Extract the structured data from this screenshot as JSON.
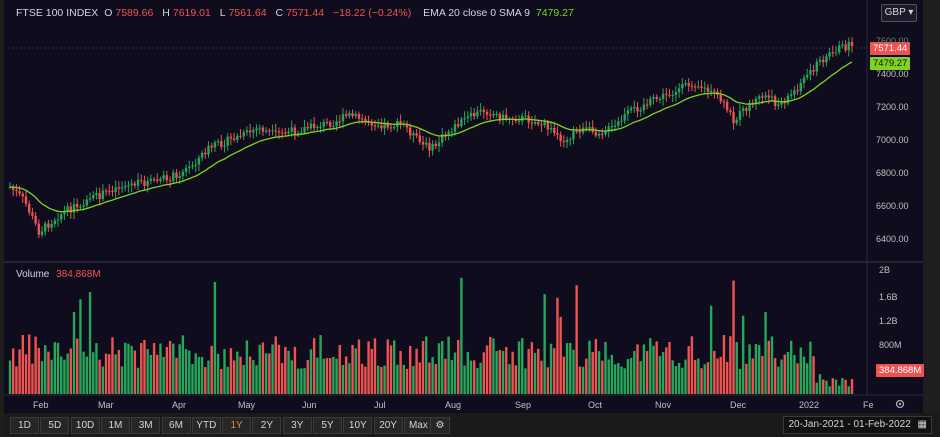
{
  "header": {
    "symbol": "FTSE 100 INDEX",
    "open_label": "O",
    "open": "7589.66",
    "high_label": "H",
    "high": "7619.01",
    "low_label": "L",
    "low": "7561.64",
    "close_label": "C",
    "close": "7571.44",
    "change": "−18.22 (−0.24%)",
    "ema_label": "EMA 20 close 0 SMA 9",
    "ema_value": "7479.27"
  },
  "currency": "GBP",
  "price_tag": "7571.44",
  "ema_tag": "7479.27",
  "price_axis": [
    "7600.00",
    "7400.00",
    "7200.00",
    "7000.00",
    "6800.00",
    "6600.00",
    "6400.00"
  ],
  "volume": {
    "label": "Volume",
    "value": "384.868M"
  },
  "volume_tag": "384.868M",
  "volume_axis": [
    "2B",
    "1.6B",
    "1.2B",
    "800M"
  ],
  "months": [
    "Feb",
    "Mar",
    "Apr",
    "May",
    "Jun",
    "Jul",
    "Aug",
    "Sep",
    "Oct",
    "Nov",
    "Dec",
    "2022",
    "Fe"
  ],
  "ranges": [
    "1D",
    "5D",
    "10D",
    "1M",
    "3M",
    "6M",
    "YTD",
    "1Y",
    "2Y",
    "3Y",
    "5Y",
    "10Y",
    "20Y",
    "Max"
  ],
  "selected_range": "1Y",
  "date_range": "20-Jan-2021 - 01-Feb-2022",
  "colors": {
    "up": "#26a65b",
    "down": "#ef5350",
    "ema": "#7ed321",
    "bg": "#0f0c1d"
  },
  "icons": [
    "settings-gear-icon",
    "calendar-icon",
    "chart-settings-icon"
  ]
}
